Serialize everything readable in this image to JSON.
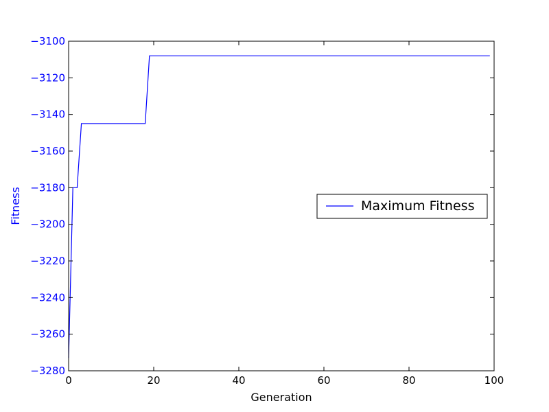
{
  "chart_data": {
    "type": "line",
    "xlabel": "Generation",
    "ylabel": "Fitness",
    "xlim": [
      0,
      100
    ],
    "ylim": [
      -3280,
      -3100
    ],
    "xticks": [
      0,
      20,
      40,
      60,
      80,
      100
    ],
    "yticks": [
      -3100,
      -3120,
      -3140,
      -3160,
      -3180,
      -3200,
      -3220,
      -3240,
      -3260,
      -3280
    ],
    "xtick_labels": [
      "0",
      "20",
      "40",
      "60",
      "80",
      "100"
    ],
    "ytick_labels": [
      "−3100",
      "−3120",
      "−3140",
      "−3160",
      "−3180",
      "−3200",
      "−3220",
      "−3240",
      "−3260",
      "−3280"
    ],
    "grid": false,
    "legend_position": "center-right",
    "colors": {
      "series": "#0000ff",
      "ylabel": "#0000ff",
      "yticks": "#0000ff",
      "xticks": "#000000",
      "xlabel": "#000000"
    },
    "series": [
      {
        "name": "Maximum Fitness",
        "x": [
          0,
          1,
          2,
          3,
          4,
          5,
          6,
          7,
          8,
          9,
          10,
          11,
          12,
          13,
          14,
          15,
          16,
          17,
          18,
          19,
          20,
          21,
          22,
          23,
          24,
          25,
          26,
          27,
          28,
          29,
          30,
          31,
          32,
          33,
          34,
          35,
          36,
          37,
          38,
          39,
          40,
          41,
          42,
          43,
          44,
          45,
          46,
          47,
          48,
          49,
          50,
          51,
          52,
          53,
          54,
          55,
          56,
          57,
          58,
          59,
          60,
          61,
          62,
          63,
          64,
          65,
          66,
          67,
          68,
          69,
          70,
          71,
          72,
          73,
          74,
          75,
          76,
          77,
          78,
          79,
          80,
          81,
          82,
          83,
          84,
          85,
          86,
          87,
          88,
          89,
          90,
          91,
          92,
          93,
          94,
          95,
          96,
          97,
          98,
          99
        ],
        "values": [
          -3273,
          -3180,
          -3180,
          -3145,
          -3145,
          -3145,
          -3145,
          -3145,
          -3145,
          -3145,
          -3145,
          -3145,
          -3145,
          -3145,
          -3145,
          -3145,
          -3145,
          -3145,
          -3145,
          -3108,
          -3108,
          -3108,
          -3108,
          -3108,
          -3108,
          -3108,
          -3108,
          -3108,
          -3108,
          -3108,
          -3108,
          -3108,
          -3108,
          -3108,
          -3108,
          -3108,
          -3108,
          -3108,
          -3108,
          -3108,
          -3108,
          -3108,
          -3108,
          -3108,
          -3108,
          -3108,
          -3108,
          -3108,
          -3108,
          -3108,
          -3108,
          -3108,
          -3108,
          -3108,
          -3108,
          -3108,
          -3108,
          -3108,
          -3108,
          -3108,
          -3108,
          -3108,
          -3108,
          -3108,
          -3108,
          -3108,
          -3108,
          -3108,
          -3108,
          -3108,
          -3108,
          -3108,
          -3108,
          -3108,
          -3108,
          -3108,
          -3108,
          -3108,
          -3108,
          -3108,
          -3108,
          -3108,
          -3108,
          -3108,
          -3108,
          -3108,
          -3108,
          -3108,
          -3108,
          -3108,
          -3108,
          -3108,
          -3108,
          -3108,
          -3108,
          -3108,
          -3108,
          -3108,
          -3108,
          -3108
        ]
      }
    ]
  }
}
